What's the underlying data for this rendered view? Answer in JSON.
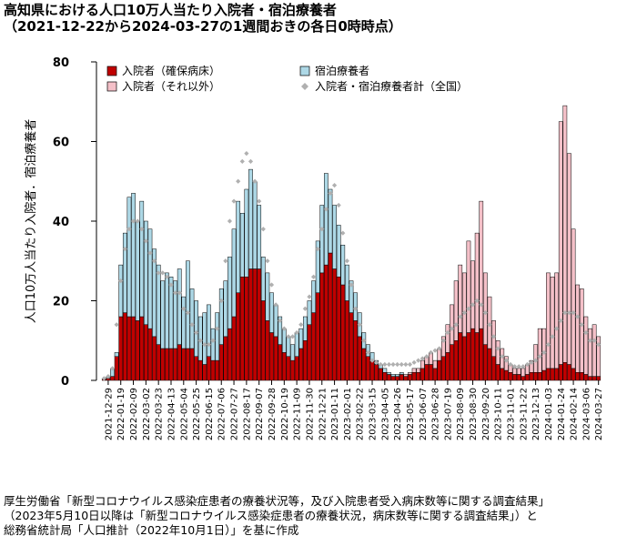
{
  "chart_data": {
    "type": "bar",
    "title": "高知県における人口10万人当たり入院者・宿泊療養者",
    "subtitle": "（2021-12-22から2024-03-27の1週間おきの各日0時時点）",
    "ylabel": "人口10万人当たり入院者．宿泊療養者",
    "ylim": [
      0,
      80
    ],
    "yticks": [
      0,
      20,
      40,
      60,
      80
    ],
    "stacked": true,
    "categories": [
      null,
      "2021-12-29",
      null,
      null,
      "2022-01-19",
      null,
      null,
      "2022-02-09",
      null,
      null,
      "2022-03-02",
      null,
      null,
      "2022-03-23",
      null,
      null,
      "2022-04-13",
      null,
      null,
      "2022-05-04",
      null,
      null,
      "2022-05-25",
      null,
      null,
      "2022-06-15",
      null,
      null,
      "2022-07-06",
      null,
      null,
      "2022-07-27",
      null,
      null,
      "2022-08-17",
      null,
      null,
      "2022-09-07",
      null,
      null,
      "2022-09-28",
      null,
      null,
      "2022-10-19",
      null,
      null,
      "2022-11-09",
      null,
      null,
      "2022-11-30",
      null,
      null,
      "2022-12-21",
      null,
      null,
      "2023-01-11",
      null,
      null,
      "2023-02-01",
      null,
      null,
      "2023-02-22",
      null,
      null,
      "2023-03-15",
      null,
      null,
      "2023-04-05",
      null,
      null,
      "2023-04-26",
      null,
      null,
      "2023-05-17",
      null,
      null,
      "2023-06-07",
      null,
      null,
      "2023-06-28",
      null,
      null,
      "2023-07-19",
      null,
      null,
      "2023-08-09",
      null,
      null,
      "2023-08-30",
      null,
      null,
      "2023-09-20",
      null,
      null,
      "2023-10-11",
      null,
      null,
      "2023-11-01",
      null,
      null,
      "2023-11-22",
      null,
      null,
      "2023-12-13",
      null,
      null,
      "2024-01-03",
      null,
      null,
      "2024-01-24",
      null,
      null,
      "2024-02-14",
      null,
      null,
      "2024-03-06",
      null,
      null,
      "2024-03-27"
    ],
    "series": [
      {
        "name": "入院者（確保病床）",
        "color": "#c00000",
        "type": "bar",
        "values": [
          0.3,
          0.5,
          1,
          6,
          16,
          17,
          16,
          16,
          15,
          16,
          14,
          13,
          11,
          9,
          8,
          8,
          8,
          8,
          9,
          8,
          8,
          8,
          6,
          5,
          4,
          6,
          5,
          5,
          9,
          11,
          13,
          16,
          22,
          26,
          26,
          28,
          28,
          28,
          20,
          15,
          12,
          11,
          9,
          7,
          6,
          5,
          6,
          8,
          10,
          14,
          17,
          22,
          27,
          29,
          32,
          28,
          26,
          24,
          20,
          17,
          15,
          11,
          8,
          6,
          5,
          4,
          3,
          2,
          1.5,
          1,
          1,
          1.5,
          1,
          1.5,
          2,
          2,
          3,
          4,
          4,
          3,
          5,
          6,
          7,
          9,
          10,
          12,
          11,
          12,
          13,
          12,
          13,
          9,
          8,
          6,
          4,
          3,
          2.5,
          2,
          1.5,
          1.5,
          1,
          1.5,
          2,
          2,
          2,
          2.5,
          3,
          3,
          3,
          4,
          4.5,
          4,
          3,
          2,
          2,
          1.5,
          1,
          1,
          1
        ]
      },
      {
        "name": "宿泊療養者",
        "color": "#add8e6",
        "type": "bar",
        "values": [
          0.2,
          0.5,
          2,
          1,
          13,
          20,
          30,
          31,
          25,
          29,
          26,
          25,
          22,
          20,
          17,
          19,
          18,
          17,
          19,
          13,
          22,
          15,
          14,
          11,
          13,
          13,
          8,
          12,
          14,
          14,
          18,
          22,
          23,
          16,
          22,
          25,
          22,
          16,
          11,
          12,
          10,
          8,
          7,
          6,
          5,
          4,
          6,
          5,
          6,
          6,
          8,
          13,
          17,
          23,
          16,
          16,
          13,
          10,
          9,
          8,
          7,
          6,
          4,
          3,
          2,
          1,
          1,
          1,
          0.5,
          0.5,
          0.5,
          0.5,
          null,
          null,
          null,
          null,
          null,
          null,
          null,
          null,
          null,
          null,
          null,
          null,
          null,
          null,
          null,
          null,
          null,
          null,
          null,
          null,
          null,
          null,
          null,
          null,
          null,
          null,
          null,
          null,
          null,
          null,
          null,
          null,
          null,
          null,
          null,
          null,
          null,
          null,
          null,
          null,
          null,
          null,
          null,
          null,
          null,
          null,
          null
        ]
      },
      {
        "name": "入院者（それ以外）",
        "color": "#f4c0c8",
        "type": "bar",
        "values": [
          null,
          null,
          null,
          null,
          null,
          null,
          null,
          null,
          null,
          null,
          null,
          null,
          null,
          null,
          null,
          null,
          null,
          null,
          null,
          null,
          null,
          null,
          null,
          null,
          null,
          null,
          null,
          null,
          null,
          null,
          null,
          null,
          null,
          null,
          null,
          null,
          null,
          null,
          null,
          null,
          null,
          null,
          null,
          null,
          null,
          null,
          null,
          null,
          null,
          null,
          null,
          null,
          null,
          null,
          null,
          null,
          null,
          null,
          null,
          null,
          null,
          null,
          null,
          null,
          null,
          null,
          null,
          null,
          null,
          null,
          null,
          null,
          0.5,
          0.5,
          1,
          1,
          2,
          2,
          3,
          2,
          3,
          5,
          7,
          10,
          15,
          17,
          16,
          23,
          17,
          25,
          32,
          18,
          13,
          9,
          6,
          5,
          3.5,
          2,
          1.5,
          1.5,
          2,
          2.5,
          3,
          7,
          11,
          10.5,
          24,
          23,
          24,
          61,
          64.5,
          53,
          35,
          22,
          21,
          14.5,
          12,
          13,
          10
        ]
      },
      {
        "name": "入院者・宿泊療養者計（全国）",
        "color": "#b0b0b0",
        "type": "scatter",
        "values": [
          0.5,
          1,
          3,
          14,
          25,
          33,
          38,
          40,
          40,
          38,
          35,
          32,
          30,
          27,
          27,
          26,
          24,
          22,
          22,
          18,
          17,
          14,
          12,
          10,
          9,
          9,
          10,
          13,
          20,
          30,
          40,
          45,
          50,
          55,
          57,
          55,
          50,
          45,
          38,
          30,
          24,
          19,
          15,
          13,
          11,
          11,
          12,
          14,
          18,
          21,
          26,
          33,
          38,
          43,
          47,
          49,
          44,
          37,
          30,
          24,
          18,
          14,
          10,
          7,
          5,
          4.5,
          4,
          4,
          4,
          4,
          4,
          4,
          4,
          4,
          4.5,
          5,
          5.5,
          6,
          7,
          7.5,
          8,
          10,
          12,
          13,
          14,
          16,
          17,
          18,
          19,
          20,
          19,
          17,
          14,
          11,
          8,
          6,
          5,
          4,
          3.5,
          3.5,
          3.5,
          4,
          4.5,
          5,
          6,
          7,
          9,
          11,
          13,
          15,
          17,
          17,
          17,
          16,
          14,
          12,
          10,
          10,
          9
        ]
      }
    ],
    "source": [
      "厚生労働省「新型コロナウイルス感染症患者の療養状況等，及び入院患者受入病床数等に関する調査結果」",
      "（2023年5月10日以降は「新型コロナウイルス感染症患者の療養状況，病床数等に関する調査結果」）と",
      "総務省統計局「人口推計（2022年10月1日）」を基に作成"
    ]
  }
}
